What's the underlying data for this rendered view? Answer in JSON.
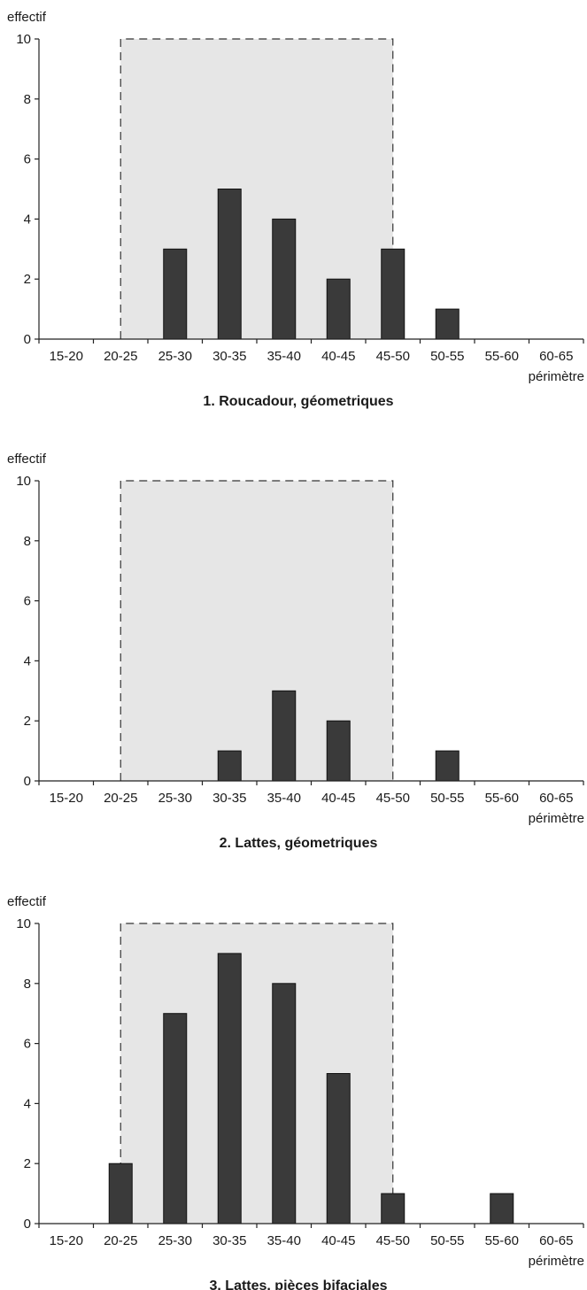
{
  "chart_data": [
    {
      "type": "bar",
      "title": "1. Roucadour, géometriques",
      "xlabel": "périmètre",
      "ylabel": "effectif",
      "ylim": [
        0,
        10
      ],
      "yticks": [
        0,
        2,
        4,
        6,
        8,
        10
      ],
      "categories": [
        "15-20",
        "20-25",
        "25-30",
        "30-35",
        "35-40",
        "40-45",
        "45-50",
        "50-55",
        "55-60",
        "60-65"
      ],
      "values": [
        0,
        0,
        3,
        5,
        4,
        2,
        3,
        1,
        0,
        0
      ],
      "highlight_range": [
        "20-25",
        "45-50"
      ],
      "colors": {
        "bar": "#3a3a3a",
        "highlight": "#e6e6e6"
      }
    },
    {
      "type": "bar",
      "title": "2. Lattes, géometriques",
      "xlabel": "périmètre",
      "ylabel": "effectif",
      "ylim": [
        0,
        10
      ],
      "yticks": [
        0,
        2,
        4,
        6,
        8,
        10
      ],
      "categories": [
        "15-20",
        "20-25",
        "25-30",
        "30-35",
        "35-40",
        "40-45",
        "45-50",
        "50-55",
        "55-60",
        "60-65"
      ],
      "values": [
        0,
        0,
        0,
        1,
        3,
        2,
        0,
        1,
        0,
        0
      ],
      "highlight_range": [
        "20-25",
        "45-50"
      ],
      "colors": {
        "bar": "#3a3a3a",
        "highlight": "#e6e6e6"
      }
    },
    {
      "type": "bar",
      "title": "3. Lattes, pièces bifaciales",
      "xlabel": "périmètre",
      "ylabel": "effectif",
      "ylim": [
        0,
        10
      ],
      "yticks": [
        0,
        2,
        4,
        6,
        8,
        10
      ],
      "categories": [
        "15-20",
        "20-25",
        "25-30",
        "30-35",
        "35-40",
        "40-45",
        "45-50",
        "50-55",
        "55-60",
        "60-65"
      ],
      "values": [
        0,
        2,
        7,
        9,
        8,
        5,
        1,
        0,
        1,
        0
      ],
      "highlight_range": [
        "20-25",
        "45-50"
      ],
      "colors": {
        "bar": "#3a3a3a",
        "highlight": "#e6e6e6"
      }
    }
  ]
}
